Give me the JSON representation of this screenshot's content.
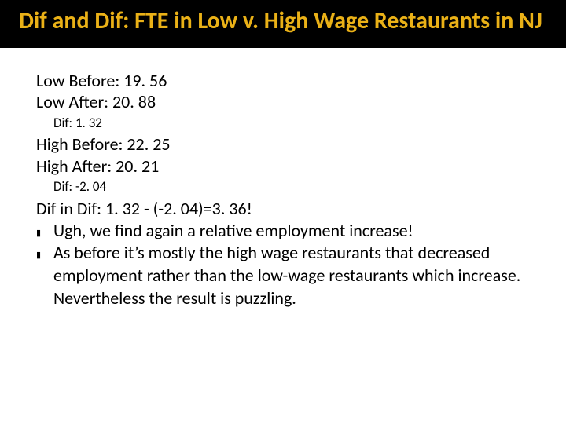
{
  "title": "Dif and Dif: FTE in Low v. High Wage Restaurants in NJ",
  "lines": {
    "low_before": "Low Before: 19. 56",
    "low_after": "Low After: 20. 88",
    "dif1": "Dif: 1. 32",
    "high_before": "High Before: 22. 25",
    "high_after": "High After: 20. 21",
    "dif2": "Dif: -2. 04",
    "didline": "Dif in Dif: 1. 32 - (-2. 04)=3. 36!",
    "bullet1": "Ugh, we find again a relative employment increase!",
    "bullet2": "As before it’s mostly the high wage restaurants that decreased employment rather than the low-wage restaurants which increase.  Nevertheless the result is puzzling."
  },
  "bullet_glyph": "▮",
  "colors": {
    "title_bg": "#000000",
    "title_fg": "#eab117",
    "body_fg": "#000000",
    "page_bg": "#ffffff"
  }
}
